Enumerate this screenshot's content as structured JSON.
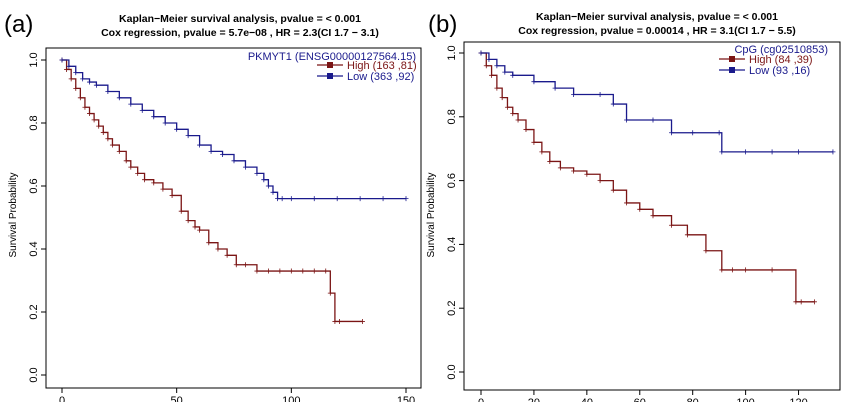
{
  "chart_data": [
    {
      "type": "line",
      "panel_label": "(a)",
      "title_line1": "Kaplan−Meier survival analysis, pvalue =  < 0.001",
      "title_line2": "Cox regression,  pvalue =  5.7e−08 , HR =  2.3(CI 1.7 − 3.1)",
      "ylabel": "Survival Probability",
      "xlim": [
        0,
        150
      ],
      "ylim": [
        0,
        1
      ],
      "x_ticks": [
        0,
        50,
        100,
        150
      ],
      "y_ticks": [
        0.0,
        0.2,
        0.4,
        0.6,
        0.8,
        1.0
      ],
      "y_tick_labels": [
        "0.0",
        "0.2",
        "0.4",
        "0.6",
        "0.8",
        "1.0"
      ],
      "legend_title": "PKMYT1 (ENSG00000127564.15)",
      "legend_position": "top-right",
      "series": [
        {
          "name": "High (163 ,81)",
          "color": "#7b1515",
          "x": [
            0,
            2,
            4,
            6,
            8,
            10,
            12,
            14,
            16,
            18,
            20,
            22,
            25,
            28,
            30,
            33,
            36,
            40,
            44,
            48,
            52,
            55,
            58,
            60,
            64,
            68,
            72,
            76,
            80,
            85,
            90,
            95,
            100,
            105,
            110,
            115,
            117,
            119,
            121,
            131
          ],
          "y": [
            1.0,
            0.97,
            0.94,
            0.91,
            0.88,
            0.85,
            0.83,
            0.81,
            0.79,
            0.77,
            0.75,
            0.73,
            0.71,
            0.68,
            0.66,
            0.64,
            0.62,
            0.61,
            0.59,
            0.57,
            0.52,
            0.49,
            0.47,
            0.46,
            0.42,
            0.4,
            0.38,
            0.35,
            0.35,
            0.33,
            0.33,
            0.33,
            0.33,
            0.33,
            0.33,
            0.33,
            0.26,
            0.17,
            0.17,
            0.17
          ]
        },
        {
          "name": "Low (363 ,92)",
          "color": "#1a1a8c",
          "x": [
            0,
            3,
            6,
            9,
            12,
            15,
            20,
            25,
            30,
            35,
            40,
            45,
            50,
            55,
            60,
            65,
            70,
            75,
            80,
            85,
            88,
            90,
            92,
            94,
            96,
            100,
            110,
            120,
            130,
            140,
            150
          ],
          "y": [
            1.0,
            0.98,
            0.96,
            0.94,
            0.93,
            0.92,
            0.9,
            0.88,
            0.86,
            0.84,
            0.82,
            0.8,
            0.78,
            0.76,
            0.73,
            0.71,
            0.7,
            0.68,
            0.66,
            0.64,
            0.62,
            0.6,
            0.58,
            0.56,
            0.56,
            0.56,
            0.56,
            0.56,
            0.56,
            0.56,
            0.56
          ]
        }
      ]
    },
    {
      "type": "line",
      "panel_label": "(b)",
      "title_line1": "Kaplan−Meier survival analysis, pvalue =  < 0.001",
      "title_line2": "Cox regression,  pvalue =  0.00014 , HR =  3.1(CI 1.7 − 5.5)",
      "ylabel": "Survival Probability",
      "xlim": [
        0,
        130
      ],
      "ylim": [
        0,
        1
      ],
      "x_ticks": [
        0,
        20,
        40,
        60,
        80,
        100,
        120
      ],
      "y_ticks": [
        0.0,
        0.2,
        0.4,
        0.6,
        0.8,
        1.0
      ],
      "y_tick_labels": [
        "0.0",
        "0.2",
        "0.4",
        "0.6",
        "0.8",
        "1.0"
      ],
      "legend_title": "CpG (cg02510853)",
      "legend_position": "top-right",
      "series": [
        {
          "name": "High (84 ,39)",
          "color": "#7b1515",
          "x": [
            0,
            2,
            4,
            6,
            8,
            10,
            12,
            14,
            17,
            20,
            23,
            26,
            30,
            35,
            40,
            45,
            50,
            55,
            60,
            65,
            72,
            78,
            85,
            91,
            95,
            100,
            110,
            119,
            121,
            126
          ],
          "y": [
            1.0,
            0.96,
            0.93,
            0.89,
            0.86,
            0.83,
            0.81,
            0.79,
            0.76,
            0.72,
            0.69,
            0.66,
            0.64,
            0.63,
            0.62,
            0.6,
            0.57,
            0.53,
            0.51,
            0.49,
            0.46,
            0.43,
            0.38,
            0.32,
            0.32,
            0.32,
            0.32,
            0.22,
            0.22,
            0.22
          ]
        },
        {
          "name": "Low (93 ,16)",
          "color": "#1a1a8c",
          "x": [
            0,
            3,
            6,
            9,
            12,
            20,
            28,
            35,
            45,
            50,
            55,
            65,
            72,
            80,
            90,
            91,
            100,
            110,
            120,
            133
          ],
          "y": [
            1.0,
            0.98,
            0.96,
            0.94,
            0.93,
            0.91,
            0.89,
            0.87,
            0.87,
            0.84,
            0.79,
            0.79,
            0.75,
            0.75,
            0.75,
            0.69,
            0.69,
            0.69,
            0.69,
            0.69
          ]
        }
      ]
    }
  ]
}
